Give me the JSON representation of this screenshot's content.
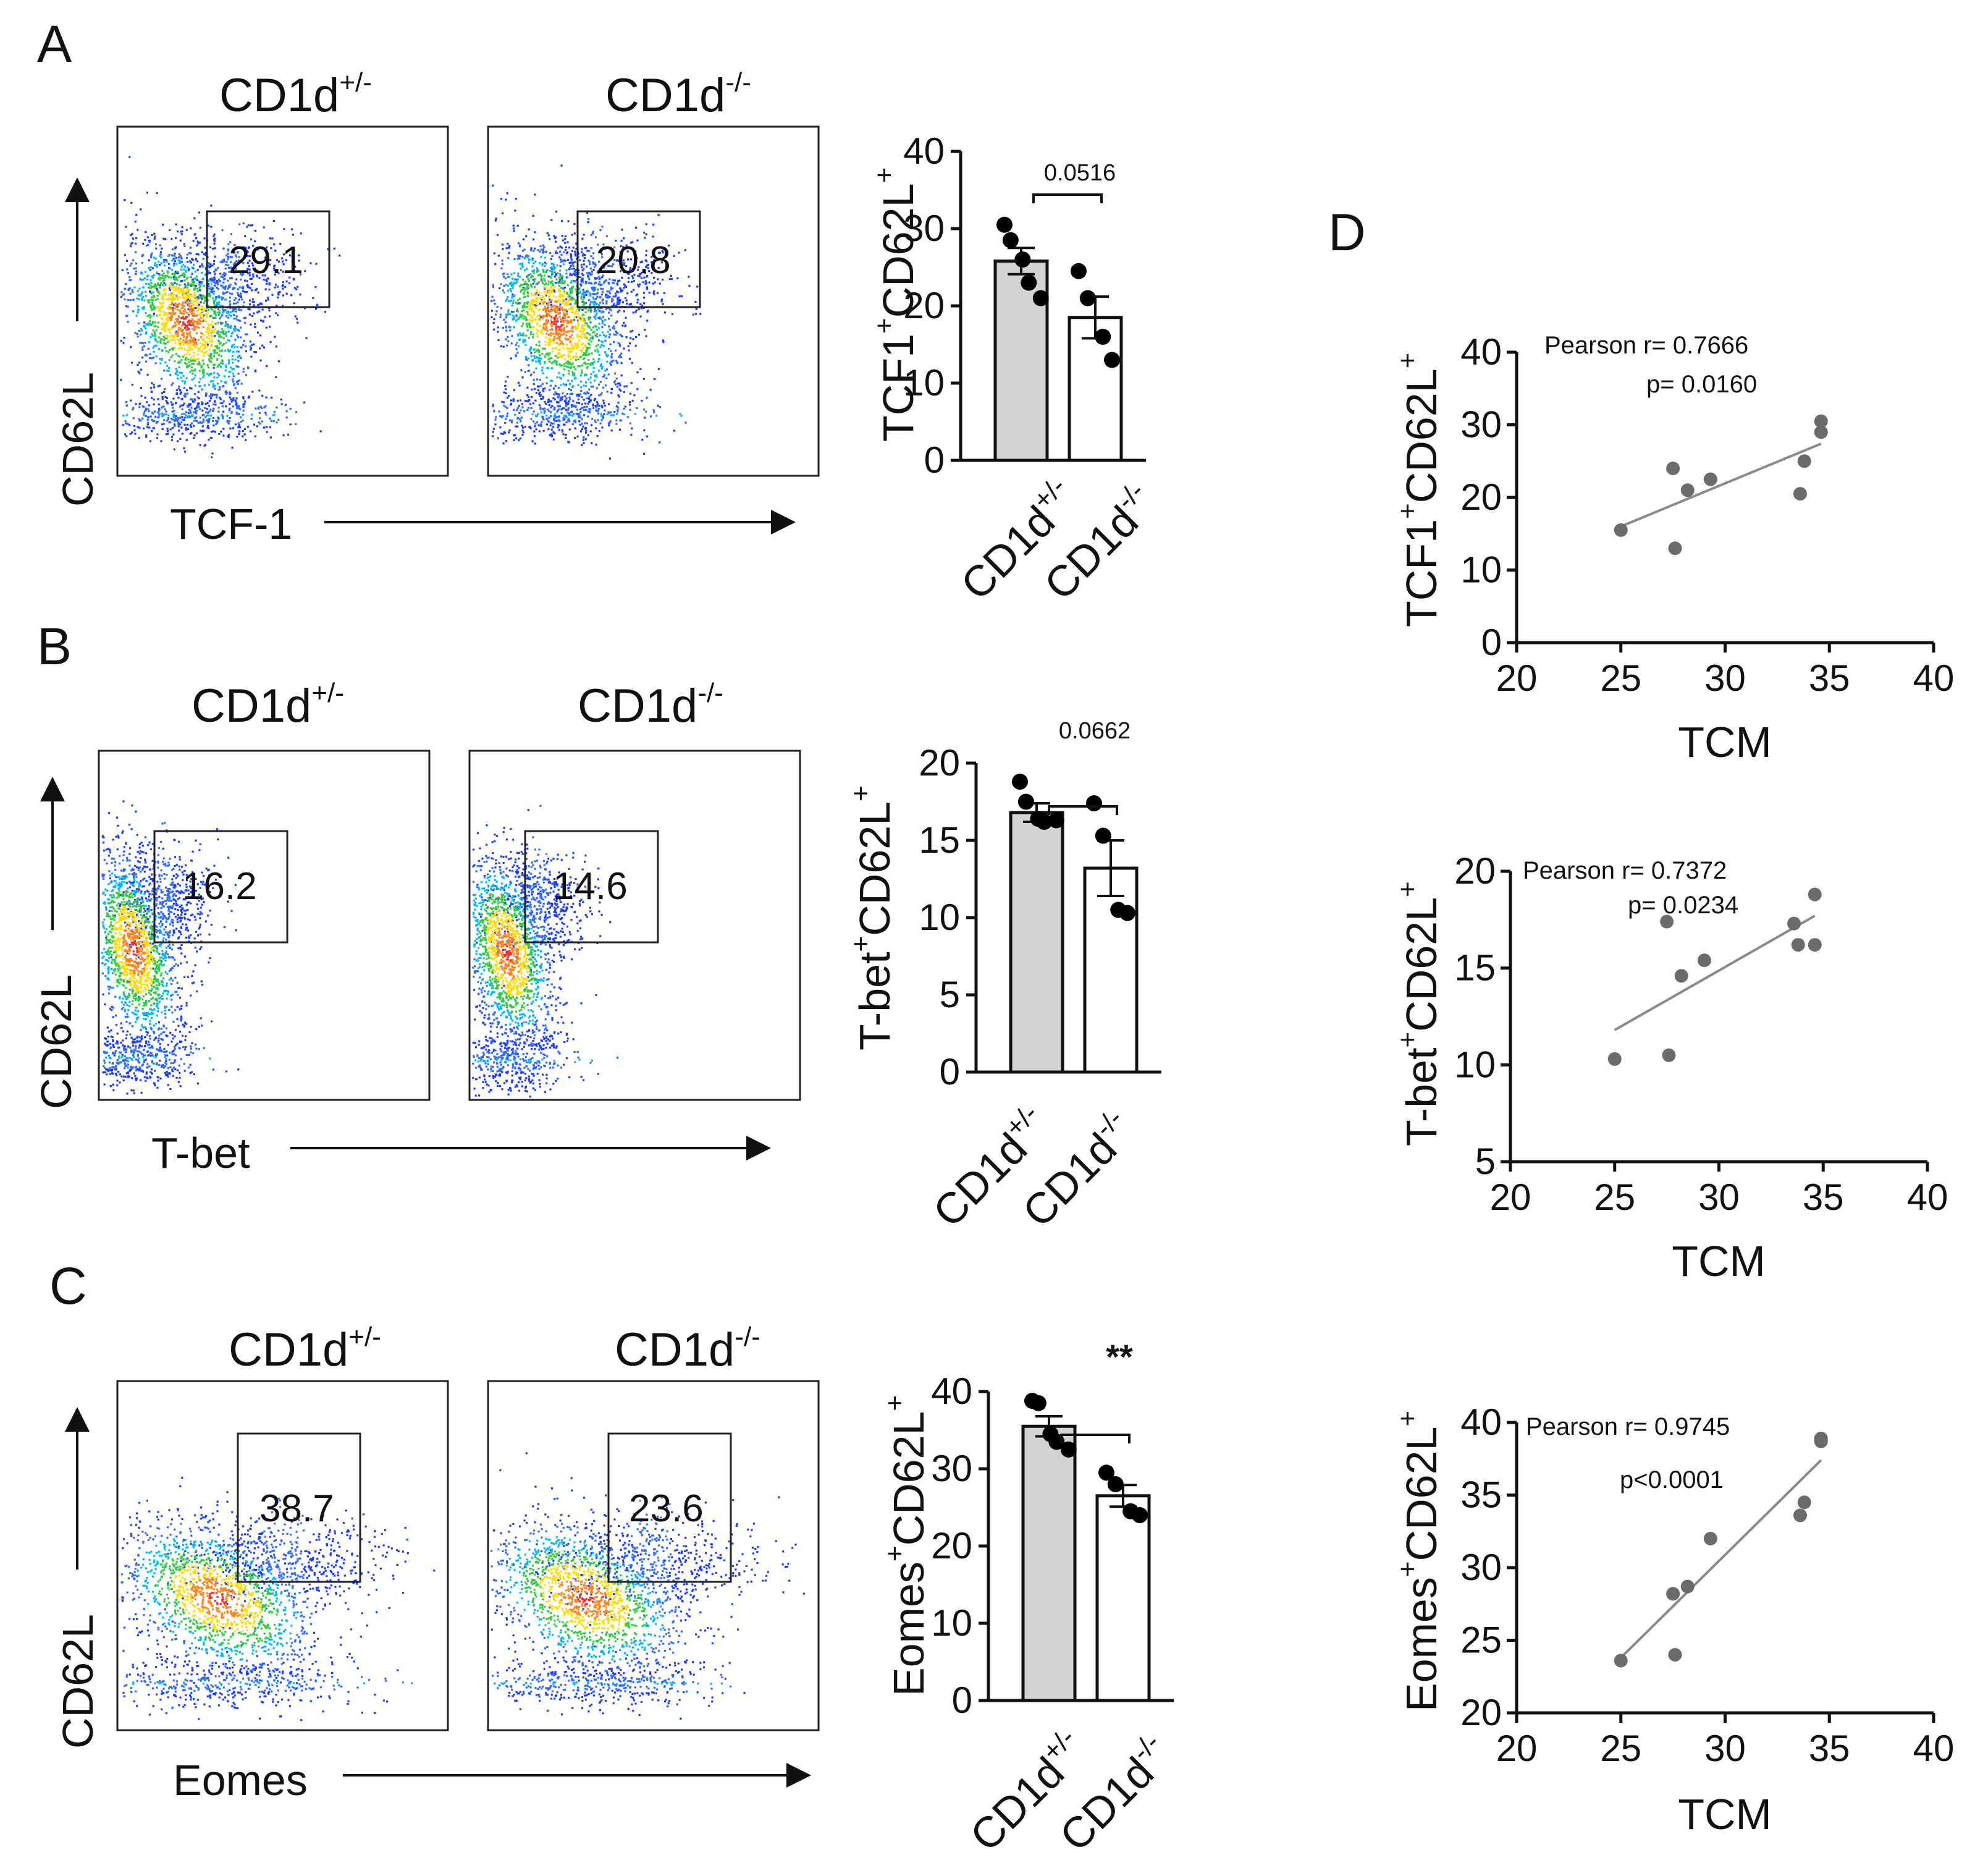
{
  "panels": {
    "A": {
      "letter": "A",
      "flow": {
        "left_title": "CD1d",
        "left_title_sup": "+/-",
        "right_title": "CD1d",
        "right_title_sup": "-/-",
        "y_label": "CD62L",
        "x_label": "TCF-1",
        "left_gate_value": "29.1",
        "right_gate_value": "20.8"
      },
      "bar": {
        "y_label": "TCF1",
        "y_label_mid": "CD62L",
        "y_label_sup": "+",
        "yticks": [
          "0",
          "10",
          "20",
          "30",
          "40"
        ],
        "sig_label": "0.0516",
        "x_cat1": "CD1d",
        "x_cat1_sup": "+/-",
        "x_cat2": "CD1d",
        "x_cat2_sup": "-/-"
      }
    },
    "B": {
      "letter": "B",
      "flow": {
        "left_title": "CD1d",
        "left_title_sup": "+/-",
        "right_title": "CD1d",
        "right_title_sup": "-/-",
        "y_label": "CD62L",
        "x_label": "T-bet",
        "left_gate_value": "16.2",
        "right_gate_value": "14.6"
      },
      "bar": {
        "y_label": "T-bet",
        "y_label_mid": "CD62L",
        "y_label_sup": "+",
        "yticks": [
          "0",
          "5",
          "10",
          "15",
          "20"
        ],
        "sig_label": "0.0662",
        "x_cat1": "CD1d",
        "x_cat1_sup": "+/-",
        "x_cat2": "CD1d",
        "x_cat2_sup": "-/-"
      }
    },
    "C": {
      "letter": "C",
      "flow": {
        "left_title": "CD1d",
        "left_title_sup": "+/-",
        "right_title": "CD1d",
        "right_title_sup": "-/-",
        "y_label": "CD62L",
        "x_label": "Eomes",
        "left_gate_value": "38.7",
        "right_gate_value": "23.6"
      },
      "bar": {
        "y_label": "Eomes",
        "y_label_mid": "CD62L",
        "y_label_sup": "+",
        "yticks": [
          "0",
          "10",
          "20",
          "30",
          "40"
        ],
        "sig_label": "**",
        "x_cat1": "CD1d",
        "x_cat1_sup": "+/-",
        "x_cat2": "CD1d",
        "x_cat2_sup": "-/-"
      }
    },
    "D": {
      "letter": "D",
      "sc1": {
        "y_label": "TCF1",
        "y_label_mid": "CD62L",
        "y_label_sup": "+",
        "x_label": "TCM",
        "xticks": [
          "20",
          "25",
          "30",
          "35",
          "40"
        ],
        "yticks": [
          "0",
          "10",
          "20",
          "30",
          "40"
        ],
        "stat1": "Pearson r= 0.7666",
        "stat2": "p= 0.0160"
      },
      "sc2": {
        "y_label": "T-bet",
        "y_label_mid": "CD62L",
        "y_label_sup": "+",
        "x_label": "TCM",
        "xticks": [
          "20",
          "25",
          "30",
          "35",
          "40"
        ],
        "yticks": [
          "5",
          "10",
          "15",
          "20"
        ],
        "stat1": "Pearson r= 0.7372",
        "stat2": "p= 0.0234"
      },
      "sc3": {
        "y_label": "Eomes",
        "y_label_mid": "CD62L",
        "y_label_sup": "+",
        "x_label": "TCM",
        "xticks": [
          "20",
          "25",
          "30",
          "35",
          "40"
        ],
        "yticks": [
          "20",
          "25",
          "30",
          "35",
          "40"
        ],
        "stat1": "Pearson r= 0.9745",
        "stat2": "p<0.0001"
      }
    }
  },
  "colors": {
    "bar_het": "#d3d3d3",
    "bar_ko": "#ffffff",
    "scatter_point": "#6b6b6b",
    "fit_line": "#8a8a8a"
  },
  "chart_data": [
    {
      "type": "bar",
      "panel": "A",
      "title": "",
      "ylabel": "TCF1+CD62L+",
      "ylim": [
        0,
        40
      ],
      "categories": [
        "CD1d+/-",
        "CD1d-/-"
      ],
      "values": [
        25.8,
        18.5
      ],
      "sem": [
        1.7,
        2.7
      ],
      "points": [
        [
          30.5,
          28.5,
          26.0,
          23.0,
          21.0
        ],
        [
          24.5,
          21.0,
          16.0,
          13.0
        ]
      ],
      "significance": "0.0516"
    },
    {
      "type": "bar",
      "panel": "B",
      "title": "",
      "ylabel": "T-bet+CD62L+",
      "ylim": [
        0,
        20
      ],
      "categories": [
        "CD1d+/-",
        "CD1d-/-"
      ],
      "values": [
        16.8,
        13.2
      ],
      "sem": [
        0.6,
        1.8
      ],
      "points": [
        [
          18.8,
          17.5,
          16.4,
          16.2,
          16.3
        ],
        [
          17.4,
          15.3,
          10.5,
          10.3
        ]
      ],
      "significance": "0.0662"
    },
    {
      "type": "bar",
      "panel": "C",
      "title": "",
      "ylabel": "Eomes+CD62L+",
      "ylim": [
        0,
        40
      ],
      "categories": [
        "CD1d+/-",
        "CD1d-/-"
      ],
      "values": [
        35.5,
        26.5
      ],
      "sem": [
        1.3,
        1.4
      ],
      "points": [
        [
          38.8,
          38.5,
          34.5,
          33.5,
          32.5
        ],
        [
          29.5,
          28.0,
          24.5,
          24.0
        ]
      ],
      "significance": "**"
    },
    {
      "type": "scatter",
      "panel": "D1",
      "xlabel": "TCM",
      "ylabel": "TCF1+CD62L+",
      "xlim": [
        20,
        40
      ],
      "ylim": [
        0,
        40
      ],
      "x": [
        25.0,
        27.6,
        27.5,
        28.2,
        29.3,
        33.6,
        33.8,
        34.6,
        34.6
      ],
      "y": [
        15.5,
        13.0,
        24.0,
        21.0,
        22.5,
        20.5,
        25.0,
        29.0,
        30.5
      ],
      "fit": [
        [
          25.0,
          16.0
        ],
        [
          34.6,
          27.4
        ]
      ],
      "pearson_r": 0.7666,
      "p": 0.016
    },
    {
      "type": "scatter",
      "panel": "D2",
      "xlabel": "TCM",
      "ylabel": "T-bet+CD62L+",
      "xlim": [
        20,
        40
      ],
      "ylim": [
        5,
        20
      ],
      "x": [
        25.0,
        27.6,
        27.5,
        28.2,
        29.3,
        33.6,
        33.8,
        34.6,
        34.6
      ],
      "y": [
        10.3,
        10.5,
        17.4,
        14.6,
        15.4,
        17.3,
        16.2,
        16.2,
        18.8
      ],
      "fit": [
        [
          25.0,
          11.8
        ],
        [
          34.6,
          17.7
        ]
      ],
      "pearson_r": 0.7372,
      "p": 0.0234
    },
    {
      "type": "scatter",
      "panel": "D3",
      "xlabel": "TCM",
      "ylabel": "Eomes+CD62L+",
      "xlim": [
        20,
        40
      ],
      "ylim": [
        20,
        40
      ],
      "x": [
        25.0,
        27.6,
        27.5,
        28.2,
        29.3,
        33.6,
        33.8,
        34.6,
        34.6
      ],
      "y": [
        23.6,
        24.0,
        28.2,
        28.7,
        32.0,
        33.6,
        34.5,
        38.7,
        38.9
      ],
      "fit": [
        [
          25.0,
          23.8
        ],
        [
          34.6,
          37.4
        ]
      ],
      "pearson_r": 0.9745,
      "p": "<0.0001"
    }
  ]
}
